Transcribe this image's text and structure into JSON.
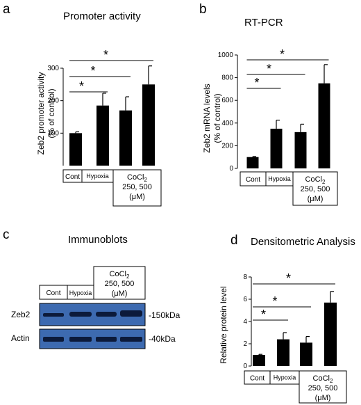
{
  "figure": {
    "panels": {
      "a": {
        "letter": "a",
        "title": "Promoter activity",
        "ylabel": [
          "Zeb2 promoter activity",
          "(% of control)"
        ]
      },
      "b": {
        "letter": "b",
        "title": "RT-PCR",
        "ylabel": [
          "Zeb2 mRNA levels",
          "(% of control)"
        ]
      },
      "c": {
        "letter": "c",
        "title": "Immunoblots"
      },
      "d": {
        "letter": "d",
        "title": "Densitometric Analysis",
        "ylabel": [
          "Relative protein level"
        ]
      }
    },
    "cond_labels": {
      "cont": "Cont",
      "hypoxia": "Hypoxia",
      "cocl2_base": "CoCl",
      "cocl2_sub": "2",
      "cocl2_conc": "250, 500",
      "cocl2_unit": "(μM)"
    },
    "significance": "*",
    "blot": {
      "rows": [
        {
          "label": "Zeb2",
          "marker": "-150kDa"
        },
        {
          "label": "Actin",
          "marker": "-40kDa"
        }
      ]
    }
  },
  "colors": {
    "bar": "#000000",
    "blot_bg": "#3d6ab0",
    "blot_band": "#0c1a3a"
  },
  "chart_data": [
    {
      "panel": "a",
      "type": "bar",
      "categories": [
        "Cont",
        "Hypoxia",
        "CoCl2 250",
        "CoCl2 500"
      ],
      "values": [
        100,
        185,
        170,
        250
      ],
      "errors": [
        4,
        38,
        42,
        57
      ],
      "ylim": [
        0,
        300
      ],
      "yticks": [
        100,
        200,
        300
      ],
      "significance": [
        [
          0,
          1
        ],
        [
          0,
          2
        ],
        [
          0,
          3
        ]
      ]
    },
    {
      "panel": "b",
      "type": "bar",
      "categories": [
        "Cont",
        "Hypoxia",
        "CoCl2 250",
        "CoCl2 500"
      ],
      "values": [
        100,
        350,
        320,
        750
      ],
      "errors": [
        5,
        75,
        70,
        165
      ],
      "ylim": [
        0,
        1000
      ],
      "yticks": [
        0,
        200,
        400,
        600,
        800,
        1000
      ],
      "significance": [
        [
          0,
          1
        ],
        [
          0,
          2
        ],
        [
          0,
          3
        ]
      ]
    },
    {
      "panel": "d",
      "type": "bar",
      "categories": [
        "Cont",
        "Hypoxia",
        "CoCl2 250",
        "CoCl2 500"
      ],
      "values": [
        1.0,
        2.4,
        2.1,
        5.7
      ],
      "errors": [
        0.05,
        0.6,
        0.55,
        1.0
      ],
      "ylim": [
        0,
        8
      ],
      "yticks": [
        0,
        2,
        4,
        6,
        8
      ],
      "significance": [
        [
          0,
          1
        ],
        [
          0,
          2
        ],
        [
          0,
          3
        ]
      ]
    }
  ]
}
